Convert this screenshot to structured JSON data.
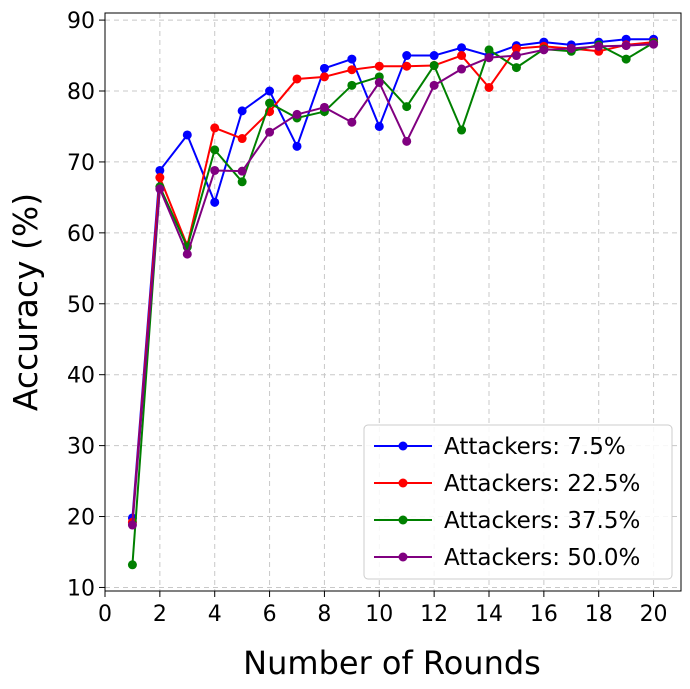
{
  "chart_data": {
    "type": "line",
    "title": "",
    "xlabel": "Number of Rounds",
    "ylabel": "Accuracy (%)",
    "xlim": [
      0,
      21
    ],
    "ylim": [
      9.5,
      91
    ],
    "xticks": [
      0,
      2,
      4,
      6,
      8,
      10,
      12,
      14,
      16,
      18,
      20
    ],
    "yticks": [
      10,
      20,
      30,
      40,
      50,
      60,
      70,
      80,
      90
    ],
    "grid": true,
    "legend_position": "lower-right",
    "x": [
      1,
      2,
      3,
      4,
      5,
      6,
      7,
      8,
      9,
      10,
      11,
      12,
      13,
      14,
      15,
      16,
      17,
      18,
      19,
      20
    ],
    "series": [
      {
        "name": "Attackers: 7.5%",
        "color": "#0000ff",
        "values": [
          19.8,
          68.8,
          73.8,
          64.3,
          77.2,
          80.0,
          72.2,
          83.2,
          84.5,
          75.0,
          85.0,
          85.0,
          86.1,
          85.0,
          86.4,
          86.9,
          86.5,
          86.9,
          87.3,
          87.3
        ]
      },
      {
        "name": "Attackers: 22.5%",
        "color": "#ff0000",
        "values": [
          19.2,
          67.8,
          58.2,
          74.8,
          73.3,
          77.1,
          81.7,
          82.0,
          83.0,
          83.5,
          83.5,
          83.6,
          85.0,
          80.5,
          86.0,
          86.3,
          86.0,
          85.6,
          86.5,
          86.9
        ]
      },
      {
        "name": "Attackers: 37.5%",
        "color": "#008000",
        "values": [
          13.2,
          66.5,
          58.0,
          71.7,
          67.2,
          78.3,
          76.2,
          77.1,
          80.8,
          82.0,
          77.8,
          83.6,
          74.5,
          85.8,
          83.3,
          85.9,
          85.6,
          86.5,
          84.5,
          86.8
        ]
      },
      {
        "name": "Attackers: 50.0%",
        "color": "#800080",
        "values": [
          18.8,
          66.2,
          57.0,
          68.8,
          68.7,
          74.2,
          76.7,
          77.7,
          75.6,
          81.2,
          72.9,
          80.8,
          83.1,
          84.7,
          85.0,
          85.8,
          86.0,
          86.3,
          86.4,
          86.6
        ]
      }
    ]
  }
}
